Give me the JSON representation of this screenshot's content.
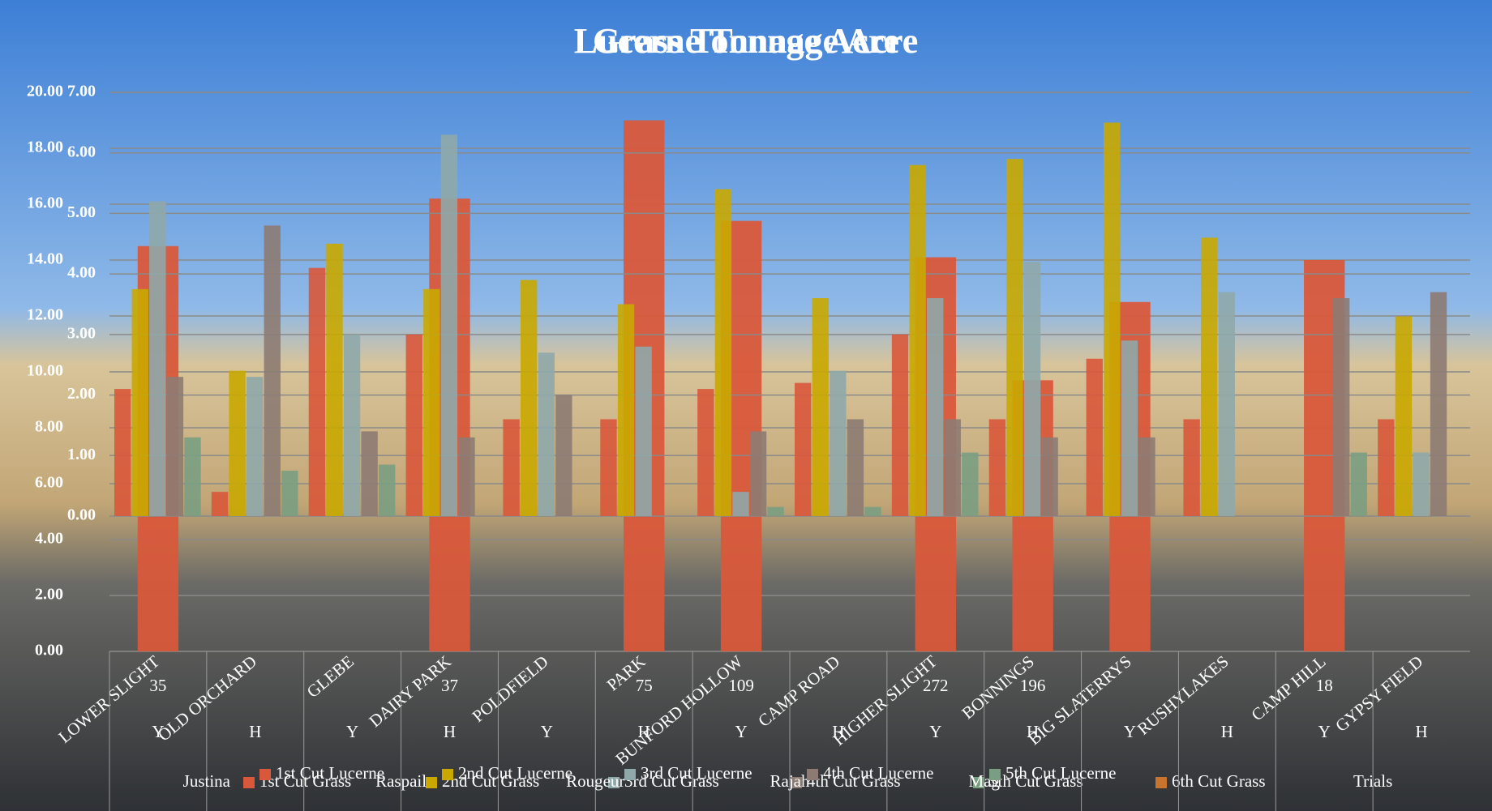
{
  "chart_data": [
    {
      "type": "bar",
      "title": "Grass Tonnage Acre",
      "categories": [
        "LOWER SLIGHT",
        "OLD ORCHARD",
        "GLEBE",
        "DAIRY PARK",
        "POLDFIELD",
        "PARK",
        "BUNFORD HOLLOW",
        "CAMP ROAD",
        "HIGHER SLIGHT",
        "BONNINGS",
        "BIG SLATERRYS",
        "RUSHYLAKES",
        "CAMP HILL",
        "GYPSY FIELD"
      ],
      "series": [
        {
          "name": "1st Cut Grass",
          "color": "#d9583b",
          "values": [
            14.5,
            null,
            null,
            16.2,
            null,
            19.0,
            15.4,
            null,
            14.1,
            9.7,
            12.5,
            null,
            14.0,
            null
          ]
        },
        {
          "name": "2nd Cut Grass",
          "color": "#c9a800",
          "values": [
            null,
            null,
            null,
            null,
            null,
            null,
            null,
            null,
            null,
            null,
            null,
            null,
            null,
            null
          ]
        },
        {
          "name": "3rd Cut Grass",
          "color": "#8fa9aa",
          "values": [
            null,
            null,
            null,
            null,
            null,
            null,
            null,
            null,
            null,
            null,
            null,
            null,
            null,
            null
          ]
        },
        {
          "name": "4th Cut Grass",
          "color": "#8d7b73",
          "values": [
            null,
            null,
            null,
            null,
            null,
            null,
            null,
            null,
            null,
            null,
            null,
            null,
            null,
            null
          ]
        },
        {
          "name": "5th Cut Grass",
          "color": "#7a9e82",
          "values": [
            null,
            null,
            null,
            null,
            null,
            null,
            null,
            null,
            null,
            null,
            null,
            null,
            null,
            null
          ]
        },
        {
          "name": "6th Cut Grass",
          "color": "#c8742e",
          "values": [
            null,
            null,
            null,
            null,
            null,
            null,
            null,
            null,
            null,
            null,
            null,
            null,
            null,
            null
          ]
        }
      ],
      "ylim": [
        0,
        20
      ],
      "yticks": [
        {
          "value": 0,
          "label": "0.00"
        },
        {
          "value": 2,
          "label": "2.00"
        },
        {
          "value": 4,
          "label": "4.00"
        },
        {
          "value": 6,
          "label": "6.00"
        },
        {
          "value": 8,
          "label": "8.00"
        },
        {
          "value": 10,
          "label": "10.00"
        },
        {
          "value": 12,
          "label": "12.00"
        },
        {
          "value": 14,
          "label": "14.00"
        },
        {
          "value": 16,
          "label": "16.00"
        },
        {
          "value": 18,
          "label": "18.00"
        },
        {
          "value": 20,
          "label": "20.00"
        }
      ],
      "grid": true
    },
    {
      "type": "bar",
      "title": "Lucerne Tonnage Acre",
      "categories": [
        "Y",
        "H",
        "Y",
        "H",
        "Y",
        "H",
        "Y",
        "H",
        "Y",
        "H",
        "Y",
        "H",
        "Y",
        "H"
      ],
      "sample_counts": [
        "35",
        null,
        null,
        "37",
        null,
        "75",
        "109",
        null,
        "272",
        "196",
        null,
        null,
        "18",
        null
      ],
      "groups": [
        "Justina",
        "Raspail",
        "Rougeur",
        "Rajah",
        "Mag",
        null,
        "Trials"
      ],
      "series": [
        {
          "name": "1st Cut Lucerne",
          "color": "#d9583b",
          "values": [
            2.1,
            0.4,
            4.1,
            3.0,
            1.6,
            1.6,
            2.1,
            2.2,
            3.0,
            1.6,
            2.6,
            1.6,
            0,
            1.6
          ]
        },
        {
          "name": "2nd Cut Lucerne",
          "color": "#c9a800",
          "values": [
            3.75,
            2.4,
            4.5,
            3.75,
            3.9,
            3.5,
            5.4,
            3.6,
            5.8,
            5.9,
            6.5,
            4.6,
            0,
            3.3
          ]
        },
        {
          "name": "3rd Cut Lucerne",
          "color": "#8fa9aa",
          "values": [
            5.2,
            2.3,
            3.0,
            6.3,
            2.7,
            2.8,
            0.4,
            2.4,
            3.6,
            4.2,
            2.9,
            3.7,
            0,
            1.05
          ]
        },
        {
          "name": "4th Cut Lucerne",
          "color": "#8d7b73",
          "values": [
            2.3,
            4.8,
            1.4,
            1.3,
            2.0,
            0,
            1.4,
            1.6,
            1.6,
            1.3,
            1.3,
            0,
            3.6,
            3.7
          ]
        },
        {
          "name": "5th Cut Lucerne",
          "color": "#7a9e82",
          "values": [
            1.3,
            0.75,
            0.85,
            0,
            0,
            0,
            0.15,
            0.15,
            1.05,
            0,
            0,
            0,
            1.05,
            0
          ]
        }
      ],
      "ylim": [
        0,
        7
      ],
      "yticks": [
        {
          "value": 0,
          "label": "0.00"
        },
        {
          "value": 1,
          "label": "1.00"
        },
        {
          "value": 2,
          "label": "2.00"
        },
        {
          "value": 3,
          "label": "3.00"
        },
        {
          "value": 4,
          "label": "4.00"
        },
        {
          "value": 5,
          "label": "5.00"
        },
        {
          "value": 6,
          "label": "6.00"
        },
        {
          "value": 7,
          "label": "7.00"
        }
      ],
      "grid": true
    }
  ]
}
